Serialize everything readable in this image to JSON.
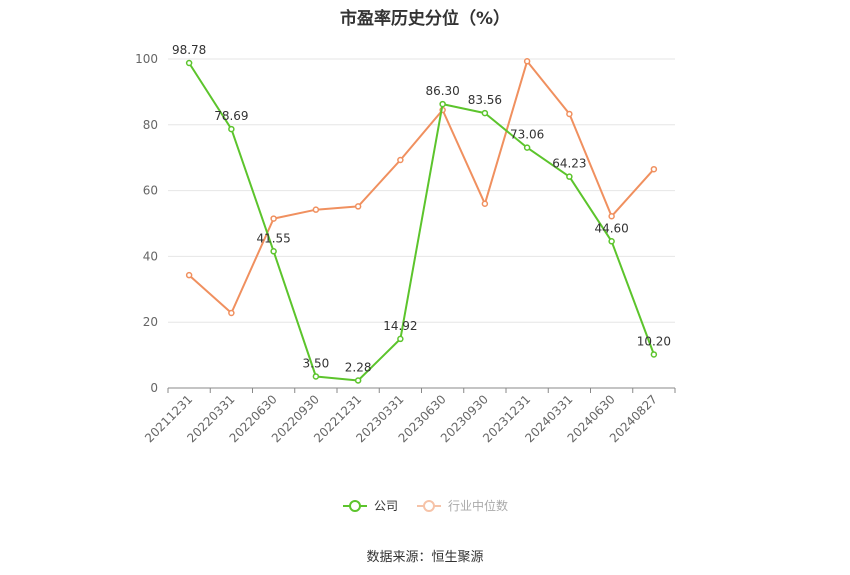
{
  "chart_data": {
    "type": "line",
    "title": "市盈率历史分位（%）",
    "categories": [
      "20211231",
      "20220331",
      "20220630",
      "20220930",
      "20221231",
      "20230331",
      "20230630",
      "20230930",
      "20231231",
      "20240331",
      "20240630",
      "20240827"
    ],
    "ylim": [
      0,
      100
    ],
    "yticks": [
      0,
      20,
      40,
      60,
      80,
      100
    ],
    "grid": true,
    "legend_position": "bottom",
    "series": [
      {
        "name": "公司",
        "color": "#5cc42c",
        "values": [
          98.78,
          78.69,
          41.55,
          3.5,
          2.28,
          14.92,
          86.3,
          83.56,
          73.06,
          64.23,
          44.6,
          10.2
        ],
        "labels": [
          "98.78",
          "78.69",
          "41.55",
          "3.50",
          "2.28",
          "14.92",
          "86.30",
          "83.56",
          "73.06",
          "64.23",
          "44.60",
          "10.20"
        ]
      },
      {
        "name": "行业中位数",
        "color": "#f0905f",
        "values": [
          34.3,
          22.8,
          51.5,
          54.2,
          55.2,
          69.3,
          84.5,
          56.0,
          99.3,
          83.3,
          52.2,
          66.5
        ]
      }
    ]
  },
  "footer": {
    "source": "数据来源：恒生聚源"
  }
}
